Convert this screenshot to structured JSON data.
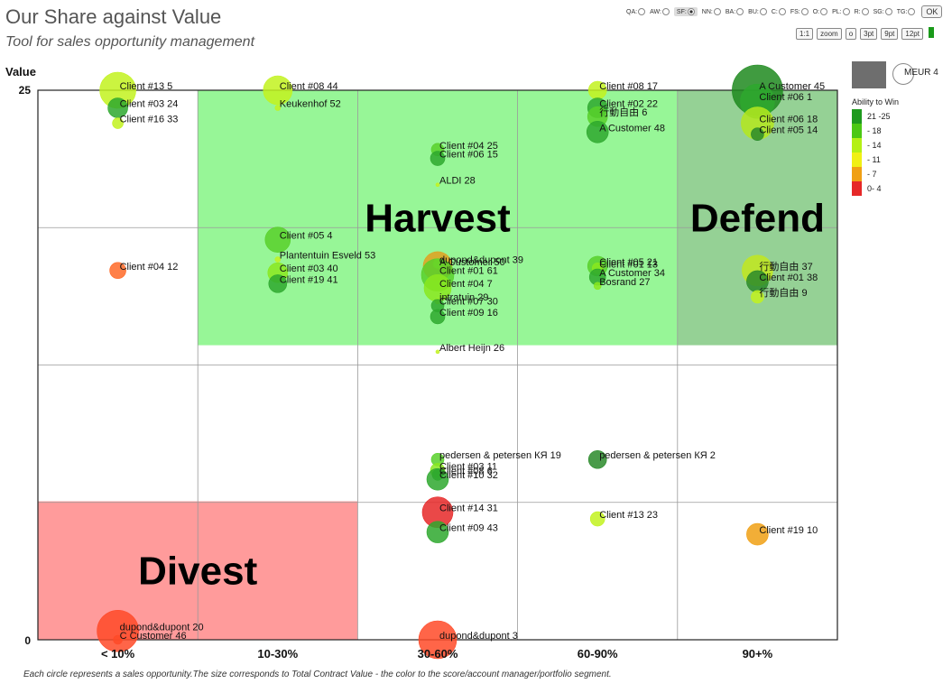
{
  "header": {
    "title": "Our Share against Value",
    "subtitle": "Tool for sales opportunity management"
  },
  "segments": [
    {
      "label": "QA:",
      "checked": false
    },
    {
      "label": "AW:",
      "checked": false
    },
    {
      "label": "SF:",
      "checked": true
    },
    {
      "label": "NN:",
      "checked": false
    },
    {
      "label": "BA:",
      "checked": false
    },
    {
      "label": "BU:",
      "checked": false
    },
    {
      "label": "C:",
      "checked": false
    },
    {
      "label": "FS:",
      "checked": false
    },
    {
      "label": "O:",
      "checked": false
    },
    {
      "label": "PL:",
      "checked": false
    },
    {
      "label": "R:",
      "checked": false
    },
    {
      "label": "SG:",
      "checked": false
    },
    {
      "label": "TG:",
      "checked": false
    }
  ],
  "controls": {
    "ok_label": "OK",
    "zoom_buttons": [
      "1:1",
      "zoom",
      "o",
      "3pt",
      "9pt",
      "12pt"
    ]
  },
  "size_key": {
    "label": "MEUR 4"
  },
  "legend": {
    "title": "Ability to Win",
    "items": [
      {
        "label": "21 -25",
        "color": "#1e9a1e"
      },
      {
        "label": "- 18",
        "color": "#4cc814"
      },
      {
        "label": "- 14",
        "color": "#b4f014"
      },
      {
        "label": "- 11",
        "color": "#f0f014"
      },
      {
        "label": "- 7",
        "color": "#f0a014"
      },
      {
        "label": "0- 4",
        "color": "#e62828"
      }
    ]
  },
  "footnote": "Each circle represents a sales opportunity.The size corresponds to Total Contract Value - the color to the score/account manager/portfolio segment.",
  "chart_data": {
    "type": "scatter",
    "title": "",
    "ylabel": "Value",
    "yticks": [
      "25",
      "0"
    ],
    "ylim": [
      0,
      25
    ],
    "categories": [
      "< 10%",
      "10-30%",
      "30-60%",
      "60-90%",
      "90+%"
    ],
    "grid": true,
    "regions": [
      {
        "label": "Harvest",
        "x0": 1,
        "x1": 4,
        "y0": 13.4,
        "y1": 25,
        "color": "#66f266",
        "opacity": 0.68
      },
      {
        "label": "Defend",
        "x0": 4,
        "x1": 5,
        "y0": 13.4,
        "y1": 25,
        "color": "#4eb24e",
        "opacity": 0.6
      },
      {
        "label": "Divest",
        "x0": 0,
        "x1": 2,
        "y0": 0,
        "y1": 6.3,
        "color": "#ff5e5e",
        "opacity": 0.62
      }
    ],
    "points": [
      {
        "label": "Client #13 5",
        "x": 0.5,
        "y": 25,
        "r": 20,
        "color": "#c2f21e"
      },
      {
        "label": "Client #03 24",
        "x": 0.5,
        "y": 24.2,
        "r": 11,
        "color": "#2ea82e"
      },
      {
        "label": "Client #16 33",
        "x": 0.5,
        "y": 23.5,
        "r": 6,
        "color": "#c2f21e"
      },
      {
        "label": "Client #04 12",
        "x": 0.5,
        "y": 16.8,
        "r": 9,
        "color": "#ff6a28"
      },
      {
        "label": "dupond&dupont 20",
        "x": 0.5,
        "y": 0.4,
        "r": 23,
        "color": "#ff4a28"
      },
      {
        "label": "C Customer 46",
        "x": 0.5,
        "y": 0,
        "r": 5,
        "color": "#ff4a28"
      },
      {
        "label": "Client #08 44",
        "x": 1.5,
        "y": 25,
        "r": 16,
        "color": "#c2f21e"
      },
      {
        "label": "Keukenhof 52",
        "x": 1.5,
        "y": 24.2,
        "r": 3,
        "color": "#c2f21e"
      },
      {
        "label": "Client #05 4",
        "x": 1.5,
        "y": 18.2,
        "r": 14,
        "color": "#58d02a"
      },
      {
        "label": "Plantentuin Esveld 53",
        "x": 1.5,
        "y": 17.3,
        "r": 3,
        "color": "#c2f21e"
      },
      {
        "label": "Client #03 40",
        "x": 1.5,
        "y": 16.7,
        "r": 11,
        "color": "#8ae81e"
      },
      {
        "label": "Client #19 41",
        "x": 1.5,
        "y": 16.2,
        "r": 10,
        "color": "#2ea82e"
      },
      {
        "label": "Client #04 25",
        "x": 2.5,
        "y": 22.3,
        "r": 7,
        "color": "#58d02a"
      },
      {
        "label": "Client #06 15",
        "x": 2.5,
        "y": 21.9,
        "r": 8,
        "color": "#2ea82e"
      },
      {
        "label": "ALDI 28",
        "x": 2.5,
        "y": 20.7,
        "r": 2,
        "color": "#c2f21e"
      },
      {
        "label": "A Customer 50",
        "x": 2.5,
        "y": 17.0,
        "r": 16,
        "color": "#e0a01e"
      },
      {
        "label": "dupond&dupont 39",
        "x": 2.5,
        "y": 17.1,
        "r": 5,
        "color": "#c2f21e"
      },
      {
        "label": "Client #01 61",
        "x": 2.5,
        "y": 16.6,
        "r": 18,
        "color": "#58d02a"
      },
      {
        "label": "Client #04 7",
        "x": 2.5,
        "y": 16.0,
        "r": 15,
        "color": "#8ae81e"
      },
      {
        "label": "intratuin 29",
        "x": 2.5,
        "y": 15.4,
        "r": 3,
        "color": "#c2f21e"
      },
      {
        "label": "Client #07 30",
        "x": 2.5,
        "y": 15.2,
        "r": 7,
        "color": "#2ea82e"
      },
      {
        "label": "Client #09 16",
        "x": 2.5,
        "y": 14.7,
        "r": 8,
        "color": "#2ea82e"
      },
      {
        "label": "Albert Heijn 26",
        "x": 2.5,
        "y": 13.1,
        "r": 2,
        "color": "#c2f21e"
      },
      {
        "label": "pedersen & petersen КЯ 19",
        "x": 2.5,
        "y": 8.2,
        "r": 7,
        "color": "#58d02a"
      },
      {
        "label": "Client #03 11",
        "x": 2.5,
        "y": 7.7,
        "r": 8,
        "color": "#8ae81e"
      },
      {
        "label": "Client #08 6",
        "x": 2.5,
        "y": 7.5,
        "r": 6,
        "color": "#2ea82e"
      },
      {
        "label": "Client #10 32",
        "x": 2.5,
        "y": 7.3,
        "r": 12,
        "color": "#2ea82e"
      },
      {
        "label": "Client #14 31",
        "x": 2.5,
        "y": 5.8,
        "r": 17,
        "color": "#e62828"
      },
      {
        "label": "Client #09 43",
        "x": 2.5,
        "y": 4.9,
        "r": 12,
        "color": "#2ea82e"
      },
      {
        "label": "dupond&dupont 3",
        "x": 2.5,
        "y": 0,
        "r": 21,
        "color": "#ff4a28"
      },
      {
        "label": "Client #08 17",
        "x": 3.5,
        "y": 25,
        "r": 10,
        "color": "#c2f21e"
      },
      {
        "label": "Client #02 22",
        "x": 3.5,
        "y": 24.2,
        "r": 11,
        "color": "#2ea82e"
      },
      {
        "label": "行動自由 6",
        "x": 3.5,
        "y": 23.8,
        "r": 11,
        "color": "#58d02a"
      },
      {
        "label": "A Customer 48",
        "x": 3.5,
        "y": 23.1,
        "r": 12,
        "color": "#2ea82e"
      },
      {
        "label": "Client #05 21",
        "x": 3.5,
        "y": 17.0,
        "r": 11,
        "color": "#58d02a"
      },
      {
        "label": "Client #01 13",
        "x": 3.5,
        "y": 16.9,
        "r": 6,
        "color": "#8ae81e"
      },
      {
        "label": "A Customer 34",
        "x": 3.5,
        "y": 16.5,
        "r": 9,
        "color": "#2ea82e"
      },
      {
        "label": "Bosrand 27",
        "x": 3.5,
        "y": 16.1,
        "r": 4,
        "color": "#8ae81e"
      },
      {
        "label": "pedersen & petersen КЯ 2",
        "x": 3.5,
        "y": 8.2,
        "r": 10,
        "color": "#2a8a2a"
      },
      {
        "label": "Client #13 23",
        "x": 3.5,
        "y": 5.5,
        "r": 8,
        "color": "#c2f21e"
      },
      {
        "label": "A Customer 45",
        "x": 4.5,
        "y": 25,
        "r": 28,
        "color": "#1e8a1e"
      },
      {
        "label": "Client #06 1",
        "x": 4.5,
        "y": 24.5,
        "r": 19,
        "color": "#2ea82e"
      },
      {
        "label": "Client #06 18",
        "x": 4.5,
        "y": 23.5,
        "r": 18,
        "color": "#b4e81e"
      },
      {
        "label": "Client #05 14",
        "x": 4.5,
        "y": 23.0,
        "r": 7,
        "color": "#2a8a2a"
      },
      {
        "label": "行動自由 37",
        "x": 4.5,
        "y": 16.8,
        "r": 17,
        "color": "#c2e81e"
      },
      {
        "label": "Client #01 38",
        "x": 4.5,
        "y": 16.3,
        "r": 12,
        "color": "#2a8a2a"
      },
      {
        "label": "行動自由 9",
        "x": 4.5,
        "y": 15.6,
        "r": 7,
        "color": "#c2f21e"
      },
      {
        "label": "Client #19 10",
        "x": 4.5,
        "y": 4.8,
        "r": 12,
        "color": "#f0a014"
      }
    ]
  }
}
